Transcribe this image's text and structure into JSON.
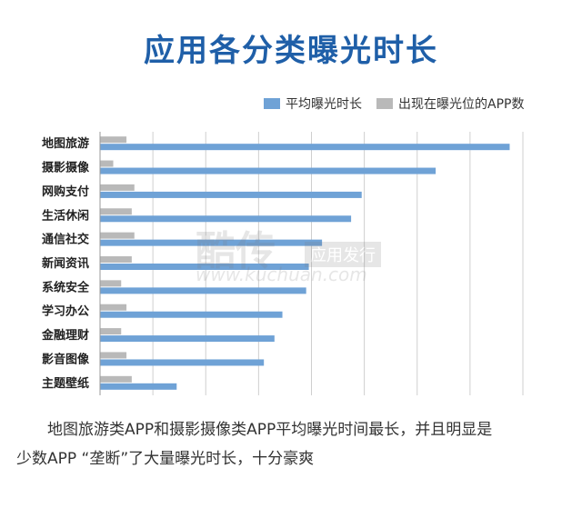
{
  "page": {
    "caption_line1": "地图旅游类APP和摄影摄像类APP平均曝光时间最长，并且明显是",
    "caption_line2": "少数APP “垄断”了大量曝光时长，十分豪爽"
  },
  "watermark": {
    "main": "酷传",
    "tag": "应用发行",
    "url": "www.kuchuan.com"
  },
  "colors": {
    "title": "#1f5fa8",
    "series_exposure": "#6fa2d6",
    "series_count": "#b9b9b9",
    "grid": "#cfcfcf"
  },
  "chart_data": {
    "type": "bar",
    "orientation": "horizontal",
    "title": "应用各分类曝光时长",
    "categories": [
      "地图旅游",
      "摄影摄像",
      "网购支付",
      "生活休闲",
      "通信社交",
      "新闻资讯",
      "系统安全",
      "学习办公",
      "金融理财",
      "影音图像",
      "主题壁纸"
    ],
    "series": [
      {
        "name": "平均曝光时长",
        "color": "#6fa2d6",
        "values": [
          7.75,
          6.35,
          4.95,
          4.75,
          4.2,
          3.95,
          3.9,
          3.45,
          3.3,
          3.1,
          1.45
        ]
      },
      {
        "name": "出现在曝光位的APP数",
        "color": "#b9b9b9",
        "values": [
          0.5,
          0.25,
          0.65,
          0.6,
          0.65,
          0.6,
          0.4,
          0.5,
          0.4,
          0.5,
          0.6
        ]
      }
    ],
    "xlim": [
      0,
      8
    ],
    "grid": true,
    "x_tick_labels_shown": false,
    "legend_position": "top-right"
  }
}
